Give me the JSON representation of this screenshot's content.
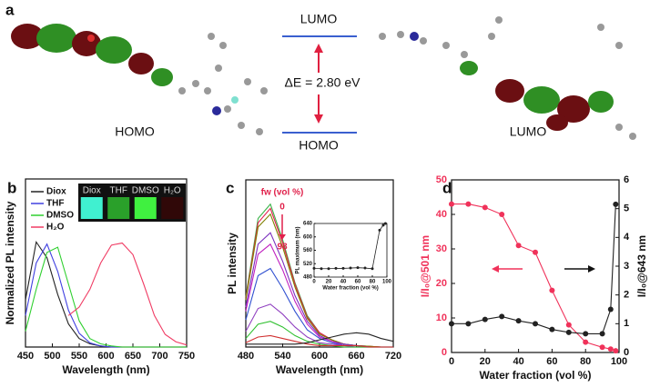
{
  "panel_a": {
    "label": "a",
    "left_label": "HOMO",
    "right_label": "LUMO",
    "level_top": "LUMO",
    "level_bottom": "HOMO",
    "gap": "ΔE = 2.80 eV"
  },
  "chart_data": [
    {
      "type": "line",
      "panel_label": "b",
      "xlabel": "Wavelength (nm)",
      "ylabel": "Normalized PL intensity",
      "x": [
        450,
        470,
        490,
        510,
        530,
        550,
        570,
        590,
        610,
        630,
        650,
        670,
        690,
        710,
        730,
        750
      ],
      "xlim": [
        450,
        750
      ],
      "xticks": [
        450,
        500,
        550,
        600,
        650,
        700,
        750
      ],
      "ylim": [
        0,
        1.6
      ],
      "legend": "upper-left",
      "inset_labels": [
        "Diox",
        "THF",
        "DMSO",
        "H₂O"
      ],
      "series": [
        {
          "name": "Diox",
          "color": "#222222",
          "values": [
            0.45,
            1.0,
            0.85,
            0.5,
            0.22,
            0.08,
            0.03,
            0.01,
            0,
            0,
            0,
            0,
            0,
            0,
            0,
            0
          ]
        },
        {
          "name": "THF",
          "color": "#4040e0",
          "values": [
            0.3,
            0.8,
            0.98,
            0.72,
            0.35,
            0.13,
            0.04,
            0.01,
            0,
            0,
            0,
            0,
            0,
            0,
            0,
            0
          ]
        },
        {
          "name": "DMSO",
          "color": "#30d030",
          "values": [
            0.15,
            0.55,
            0.9,
            0.95,
            0.6,
            0.25,
            0.08,
            0.03,
            0.01,
            0,
            0,
            0,
            0,
            0,
            0,
            0
          ]
        },
        {
          "name": "H₂O",
          "color": "#f03c64",
          "values": [
            null,
            null,
            null,
            null,
            0.3,
            0.38,
            0.55,
            0.8,
            0.97,
            0.99,
            0.88,
            0.6,
            0.3,
            0.12,
            0.05,
            0.02
          ]
        }
      ]
    },
    {
      "type": "line",
      "panel_label": "c",
      "xlabel": "Wavelength (nm)",
      "ylabel": "PL intensity",
      "legend_title": "fw (vol %)",
      "fw_range": [
        0,
        98
      ],
      "x": [
        480,
        500,
        520,
        540,
        560,
        580,
        600,
        620,
        640,
        660,
        680,
        700,
        720
      ],
      "xlim": [
        480,
        720
      ],
      "xticks": [
        480,
        540,
        600,
        660,
        720
      ],
      "ylim": [
        0,
        1.17
      ],
      "series": [
        {
          "color": "#3cb44b",
          "values": [
            0.35,
            0.9,
            1,
            0.75,
            0.45,
            0.22,
            0.1,
            0.05,
            0.02,
            0.01,
            0.005,
            0,
            0
          ]
        },
        {
          "color": "#e6194b",
          "values": [
            0.34,
            0.87,
            0.97,
            0.73,
            0.44,
            0.21,
            0.1,
            0.05,
            0.02,
            0.01,
            0.005,
            0,
            0
          ]
        },
        {
          "color": "#808000",
          "values": [
            0.33,
            0.84,
            0.93,
            0.7,
            0.42,
            0.2,
            0.09,
            0.05,
            0.02,
            0.01,
            0.005,
            0,
            0
          ]
        },
        {
          "color": "#7b2fbe",
          "values": [
            0.28,
            0.72,
            0.8,
            0.6,
            0.36,
            0.18,
            0.08,
            0.04,
            0.02,
            0.01,
            0,
            0,
            0
          ]
        },
        {
          "color": "#c020c0",
          "values": [
            0.25,
            0.65,
            0.72,
            0.54,
            0.32,
            0.16,
            0.07,
            0.04,
            0.01,
            0.01,
            0,
            0,
            0
          ]
        },
        {
          "color": "#3050d0",
          "values": [
            0.19,
            0.5,
            0.55,
            0.41,
            0.25,
            0.12,
            0.06,
            0.03,
            0.01,
            0.01,
            0,
            0,
            0
          ]
        },
        {
          "color": "#9040c0",
          "values": [
            0.11,
            0.27,
            0.3,
            0.23,
            0.14,
            0.07,
            0.03,
            0.02,
            0.01,
            0,
            0,
            0,
            0
          ]
        },
        {
          "color": "#30c030",
          "values": [
            0.06,
            0.16,
            0.18,
            0.14,
            0.08,
            0.04,
            0.02,
            0.01,
            0,
            0,
            0,
            0,
            0
          ]
        },
        {
          "color": "#d03030",
          "values": [
            0.03,
            0.07,
            0.08,
            0.06,
            0.04,
            0.02,
            0.01,
            0.01,
            0.01,
            0.01,
            0,
            0,
            0
          ]
        },
        {
          "color": "#222222",
          "values": [
            0.02,
            0.02,
            0.02,
            0.02,
            0.02,
            0.03,
            0.05,
            0.07,
            0.09,
            0.1,
            0.09,
            0.06,
            0.04
          ]
        }
      ]
    },
    {
      "type": "line",
      "markers": true,
      "xlabel": "Water fraction (vol %)",
      "ylabel": "PL maximum (nm)",
      "x": [
        0,
        10,
        20,
        30,
        40,
        50,
        60,
        70,
        80,
        90,
        95,
        98
      ],
      "xlim": [
        0,
        100
      ],
      "xticks": [
        0,
        20,
        40,
        60,
        80,
        100
      ],
      "ylim": [
        480,
        640
      ],
      "yticks": [
        480,
        520,
        560,
        600,
        640
      ],
      "series": [
        {
          "color": "#222222",
          "values": [
            506,
            505,
            505,
            506,
            506,
            507,
            508,
            507,
            505,
            620,
            635,
            640
          ]
        }
      ]
    },
    {
      "type": "line",
      "markers": true,
      "panel_label": "d",
      "xlabel": "Water fraction (vol %)",
      "ylabel": "I/I₀@501 nm",
      "y2label": "I/I₀@643 nm",
      "x": [
        0,
        10,
        20,
        30,
        40,
        50,
        60,
        70,
        80,
        90,
        95,
        98
      ],
      "xlim": [
        0,
        100
      ],
      "xticks": [
        0,
        20,
        40,
        60,
        80,
        100
      ],
      "ylim": [
        0,
        50
      ],
      "yticks": [
        0,
        10,
        20,
        30,
        40,
        50
      ],
      "y2lim": [
        0,
        6
      ],
      "y2ticks": [
        0,
        1,
        2,
        3,
        4,
        5,
        6
      ],
      "series": [
        {
          "color": "#f0325a",
          "values": [
            43,
            43,
            42,
            40,
            31,
            29,
            18,
            8,
            3,
            1.5,
            1,
            0.5
          ]
        },
        {
          "color": "#222222",
          "axis": "y2",
          "values": [
            1.0,
            1.0,
            1.15,
            1.25,
            1.1,
            1.0,
            0.8,
            0.7,
            0.65,
            0.65,
            1.5,
            5.15
          ]
        }
      ]
    }
  ]
}
